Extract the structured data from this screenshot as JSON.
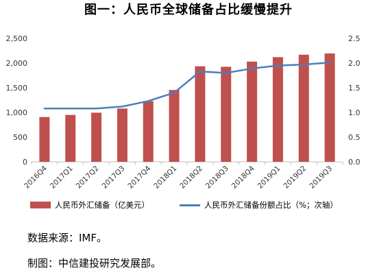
{
  "title": "图一：人民币全球储备占比缓慢提升",
  "colors": {
    "bar": "#C0504D",
    "line": "#4A7EBB",
    "axis_text": "#333333",
    "grid": "#D9D9D9"
  },
  "legend": {
    "bar_label": "人民币外汇储备（亿美元）",
    "line_label": "人民币外汇储备份额占比（%；次轴）"
  },
  "footnotes": {
    "source": "数据来源：IMF。",
    "producer": "制图：中信建投研究发展部。"
  },
  "chart_data": {
    "type": "bar",
    "title": "图一：人民币全球储备占比缓慢提升",
    "categories": [
      "2016Q4",
      "2017Q1",
      "2017Q2",
      "2017Q3",
      "2017Q4",
      "2018Q1",
      "2018Q2",
      "2018Q3",
      "2018Q4",
      "2019Q1",
      "2019Q2",
      "2019Q3"
    ],
    "series": [
      {
        "name": "人民币外汇储备（亿美元）",
        "type": "bar",
        "axis": "primary",
        "values": [
          907,
          950,
          995,
          1080,
          1230,
          1455,
          1935,
          1925,
          2030,
          2120,
          2170,
          2195
        ]
      },
      {
        "name": "人民币外汇储备份额占比（%；次轴）",
        "type": "line",
        "axis": "secondary",
        "values": [
          1.08,
          1.08,
          1.08,
          1.12,
          1.23,
          1.4,
          1.83,
          1.8,
          1.89,
          1.95,
          1.97,
          2.01
        ]
      }
    ],
    "ylim": [
      0,
      2500
    ],
    "yticks": [
      0,
      500,
      1000,
      1500,
      2000,
      2500
    ],
    "ytick_labels": [
      "0",
      "500",
      "1,000",
      "1,500",
      "2,000",
      "2,500"
    ],
    "y2lim": [
      0,
      2.5
    ],
    "y2ticks": [
      0,
      0.5,
      1.0,
      1.5,
      2.0,
      2.5
    ],
    "y2tick_labels": [
      "0.0",
      "0.5",
      "1.0",
      "1.5",
      "2.0",
      "2.5"
    ],
    "xlabel": "",
    "ylabel": "",
    "grid": false,
    "legend_position": "bottom"
  }
}
